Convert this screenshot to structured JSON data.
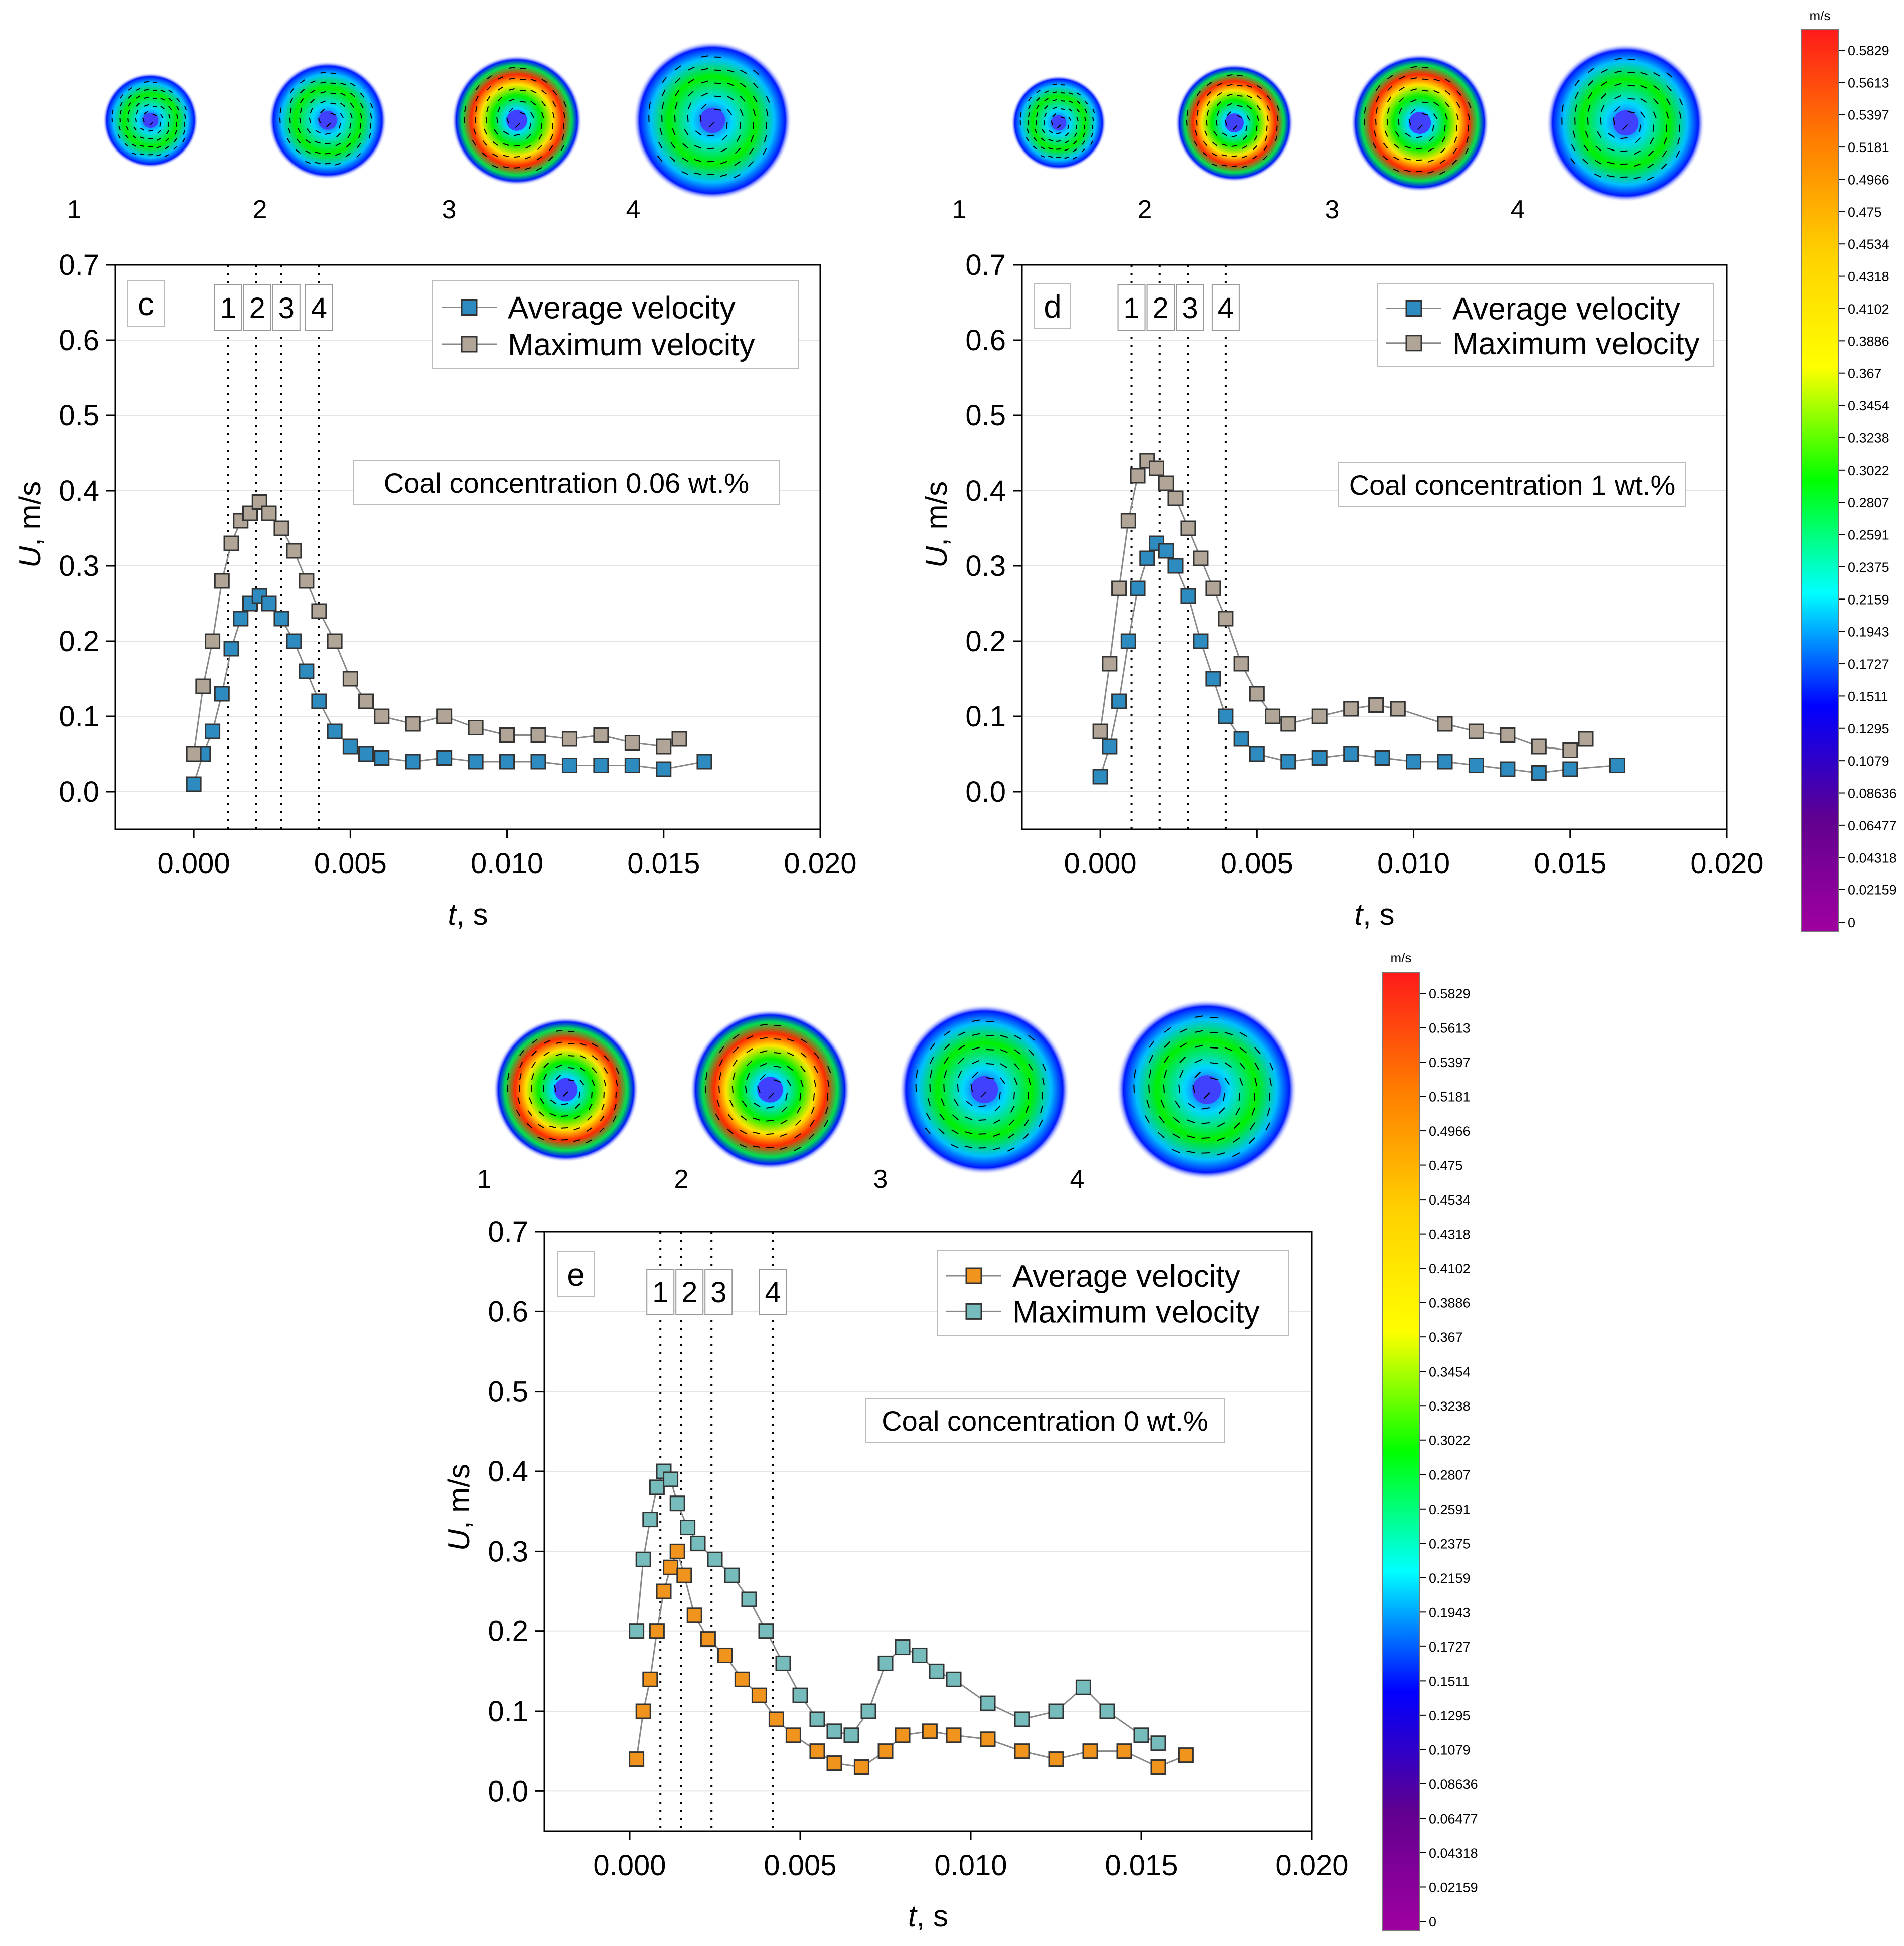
{
  "colorbar": {
    "unit": "m/s",
    "ticks": [
      "0.5829",
      "0.5613",
      "0.5397",
      "0.5181",
      "0.4966",
      "0.475",
      "0.4534",
      "0.4318",
      "0.4102",
      "0.3886",
      "0.367",
      "0.3454",
      "0.3238",
      "0.3022",
      "0.2807",
      "0.2591",
      "0.2375",
      "0.2159",
      "0.1943",
      "0.1727",
      "0.1511",
      "0.1295",
      "0.1079",
      "0.08636",
      "0.06477",
      "0.04318",
      "0.02159",
      "0"
    ],
    "stops": [
      "#ff1a1a",
      "#ff7f00",
      "#ffd200",
      "#ffff00",
      "#00ff00",
      "#00ffff",
      "#0000ff",
      "#600090",
      "#a000a0"
    ]
  },
  "snapshot_labels": [
    "1",
    "2",
    "3",
    "4"
  ],
  "chart_data": [
    {
      "type": "scatter",
      "panel_label": "c",
      "annotation": "Coal concentration 0.06 wt.%",
      "xlabel_italic": "t",
      "xlabel_rest": ", s",
      "ylabel_italic": "U",
      "ylabel_rest": ", m/s",
      "xlim": [
        -0.0025,
        0.02
      ],
      "ylim": [
        -0.05,
        0.7
      ],
      "xticks": [
        "0.000",
        "0.005",
        "0.010",
        "0.015",
        "0.020"
      ],
      "yticks": [
        "0.0",
        "0.1",
        "0.2",
        "0.3",
        "0.4",
        "0.5",
        "0.6",
        "0.7"
      ],
      "markers": [
        {
          "label": "1",
          "t": 0.0011
        },
        {
          "label": "2",
          "t": 0.002
        },
        {
          "label": "3",
          "t": 0.0028
        },
        {
          "label": "4",
          "t": 0.004
        }
      ],
      "series": [
        {
          "name": "Average velocity",
          "color": "#2e8bc0",
          "points": [
            [
              0,
              0.01
            ],
            [
              0.0003,
              0.05
            ],
            [
              0.0006,
              0.08
            ],
            [
              0.0009,
              0.13
            ],
            [
              0.0012,
              0.19
            ],
            [
              0.0015,
              0.23
            ],
            [
              0.0018,
              0.25
            ],
            [
              0.0021,
              0.26
            ],
            [
              0.0024,
              0.25
            ],
            [
              0.0028,
              0.23
            ],
            [
              0.0032,
              0.2
            ],
            [
              0.0036,
              0.16
            ],
            [
              0.004,
              0.12
            ],
            [
              0.0045,
              0.08
            ],
            [
              0.005,
              0.06
            ],
            [
              0.0055,
              0.05
            ],
            [
              0.006,
              0.045
            ],
            [
              0.007,
              0.04
            ],
            [
              0.008,
              0.045
            ],
            [
              0.009,
              0.04
            ],
            [
              0.01,
              0.04
            ],
            [
              0.011,
              0.04
            ],
            [
              0.012,
              0.035
            ],
            [
              0.013,
              0.035
            ],
            [
              0.014,
              0.035
            ],
            [
              0.015,
              0.03
            ],
            [
              0.0163,
              0.04
            ]
          ]
        },
        {
          "name": "Maximum velocity",
          "color": "#b1a598",
          "points": [
            [
              0,
              0.05
            ],
            [
              0.0003,
              0.14
            ],
            [
              0.0006,
              0.2
            ],
            [
              0.0009,
              0.28
            ],
            [
              0.0012,
              0.33
            ],
            [
              0.0015,
              0.36
            ],
            [
              0.0018,
              0.37
            ],
            [
              0.0021,
              0.385
            ],
            [
              0.0024,
              0.37
            ],
            [
              0.0028,
              0.35
            ],
            [
              0.0032,
              0.32
            ],
            [
              0.0036,
              0.28
            ],
            [
              0.004,
              0.24
            ],
            [
              0.0045,
              0.2
            ],
            [
              0.005,
              0.15
            ],
            [
              0.0055,
              0.12
            ],
            [
              0.006,
              0.1
            ],
            [
              0.007,
              0.09
            ],
            [
              0.008,
              0.1
            ],
            [
              0.009,
              0.085
            ],
            [
              0.01,
              0.075
            ],
            [
              0.011,
              0.075
            ],
            [
              0.012,
              0.07
            ],
            [
              0.013,
              0.075
            ],
            [
              0.014,
              0.065
            ],
            [
              0.015,
              0.06
            ],
            [
              0.0155,
              0.07
            ]
          ]
        }
      ]
    },
    {
      "type": "scatter",
      "panel_label": "d",
      "annotation": "Coal concentration 1 wt.%",
      "xlabel_italic": "t",
      "xlabel_rest": ", s",
      "ylabel_italic": "U",
      "ylabel_rest": ", m/s",
      "xlim": [
        -0.0025,
        0.02
      ],
      "ylim": [
        -0.05,
        0.7
      ],
      "xticks": [
        "0.000",
        "0.005",
        "0.010",
        "0.015",
        "0.020"
      ],
      "yticks": [
        "0.0",
        "0.1",
        "0.2",
        "0.3",
        "0.4",
        "0.5",
        "0.6",
        "0.7"
      ],
      "markers": [
        {
          "label": "1",
          "t": 0.001
        },
        {
          "label": "2",
          "t": 0.0019
        },
        {
          "label": "3",
          "t": 0.0028
        },
        {
          "label": "4",
          "t": 0.004
        }
      ],
      "series": [
        {
          "name": "Average velocity",
          "color": "#2e8bc0",
          "points": [
            [
              0,
              0.02
            ],
            [
              0.0003,
              0.06
            ],
            [
              0.0006,
              0.12
            ],
            [
              0.0009,
              0.2
            ],
            [
              0.0012,
              0.27
            ],
            [
              0.0015,
              0.31
            ],
            [
              0.0018,
              0.33
            ],
            [
              0.0021,
              0.32
            ],
            [
              0.0024,
              0.3
            ],
            [
              0.0028,
              0.26
            ],
            [
              0.0032,
              0.2
            ],
            [
              0.0036,
              0.15
            ],
            [
              0.004,
              0.1
            ],
            [
              0.0045,
              0.07
            ],
            [
              0.005,
              0.05
            ],
            [
              0.006,
              0.04
            ],
            [
              0.007,
              0.045
            ],
            [
              0.008,
              0.05
            ],
            [
              0.009,
              0.045
            ],
            [
              0.01,
              0.04
            ],
            [
              0.011,
              0.04
            ],
            [
              0.012,
              0.035
            ],
            [
              0.013,
              0.03
            ],
            [
              0.014,
              0.025
            ],
            [
              0.015,
              0.03
            ],
            [
              0.0165,
              0.035
            ]
          ]
        },
        {
          "name": "Maximum velocity",
          "color": "#b1a598",
          "points": [
            [
              0,
              0.08
            ],
            [
              0.0003,
              0.17
            ],
            [
              0.0006,
              0.27
            ],
            [
              0.0009,
              0.36
            ],
            [
              0.0012,
              0.42
            ],
            [
              0.0015,
              0.44
            ],
            [
              0.0018,
              0.43
            ],
            [
              0.0021,
              0.41
            ],
            [
              0.0024,
              0.39
            ],
            [
              0.0028,
              0.35
            ],
            [
              0.0032,
              0.31
            ],
            [
              0.0036,
              0.27
            ],
            [
              0.004,
              0.23
            ],
            [
              0.0045,
              0.17
            ],
            [
              0.005,
              0.13
            ],
            [
              0.0055,
              0.1
            ],
            [
              0.006,
              0.09
            ],
            [
              0.007,
              0.1
            ],
            [
              0.008,
              0.11
            ],
            [
              0.0088,
              0.115
            ],
            [
              0.0095,
              0.11
            ],
            [
              0.011,
              0.09
            ],
            [
              0.012,
              0.08
            ],
            [
              0.013,
              0.075
            ],
            [
              0.014,
              0.06
            ],
            [
              0.015,
              0.055
            ],
            [
              0.0155,
              0.07
            ]
          ]
        }
      ]
    },
    {
      "type": "scatter",
      "panel_label": "e",
      "annotation": "Coal concentration 0 wt.%",
      "xlabel_italic": "t",
      "xlabel_rest": ", s",
      "ylabel_italic": "U",
      "ylabel_rest": ", m/s",
      "xlim": [
        -0.0025,
        0.02
      ],
      "ylim": [
        -0.05,
        0.7
      ],
      "xticks": [
        "0.000",
        "0.005",
        "0.010",
        "0.015",
        "0.020"
      ],
      "yticks": [
        "0.0",
        "0.1",
        "0.2",
        "0.3",
        "0.4",
        "0.5",
        "0.6",
        "0.7"
      ],
      "markers": [
        {
          "label": "1",
          "t": 0.0009
        },
        {
          "label": "2",
          "t": 0.0015
        },
        {
          "label": "3",
          "t": 0.0024
        },
        {
          "label": "4",
          "t": 0.0042
        }
      ],
      "series": [
        {
          "name": "Average velocity",
          "color": "#f0941e",
          "points": [
            [
              0.0002,
              0.04
            ],
            [
              0.0004,
              0.1
            ],
            [
              0.0006,
              0.14
            ],
            [
              0.0008,
              0.2
            ],
            [
              0.001,
              0.25
            ],
            [
              0.0012,
              0.28
            ],
            [
              0.0014,
              0.3
            ],
            [
              0.0016,
              0.27
            ],
            [
              0.0019,
              0.22
            ],
            [
              0.0023,
              0.19
            ],
            [
              0.0028,
              0.17
            ],
            [
              0.0033,
              0.14
            ],
            [
              0.0038,
              0.12
            ],
            [
              0.0043,
              0.09
            ],
            [
              0.0048,
              0.07
            ],
            [
              0.0055,
              0.05
            ],
            [
              0.006,
              0.035
            ],
            [
              0.0068,
              0.03
            ],
            [
              0.0075,
              0.05
            ],
            [
              0.008,
              0.07
            ],
            [
              0.0088,
              0.075
            ],
            [
              0.0095,
              0.07
            ],
            [
              0.0105,
              0.065
            ],
            [
              0.0115,
              0.05
            ],
            [
              0.0125,
              0.04
            ],
            [
              0.0135,
              0.05
            ],
            [
              0.0145,
              0.05
            ],
            [
              0.0155,
              0.03
            ],
            [
              0.0163,
              0.045
            ]
          ]
        },
        {
          "name": "Maximum velocity",
          "color": "#76bcbc",
          "points": [
            [
              0.0002,
              0.2
            ],
            [
              0.0004,
              0.29
            ],
            [
              0.0006,
              0.34
            ],
            [
              0.0008,
              0.38
            ],
            [
              0.001,
              0.4
            ],
            [
              0.0012,
              0.39
            ],
            [
              0.0014,
              0.36
            ],
            [
              0.0017,
              0.33
            ],
            [
              0.002,
              0.31
            ],
            [
              0.0025,
              0.29
            ],
            [
              0.003,
              0.27
            ],
            [
              0.0035,
              0.24
            ],
            [
              0.004,
              0.2
            ],
            [
              0.0045,
              0.16
            ],
            [
              0.005,
              0.12
            ],
            [
              0.0055,
              0.09
            ],
            [
              0.006,
              0.075
            ],
            [
              0.0065,
              0.07
            ],
            [
              0.007,
              0.1
            ],
            [
              0.0075,
              0.16
            ],
            [
              0.008,
              0.18
            ],
            [
              0.0085,
              0.17
            ],
            [
              0.009,
              0.15
            ],
            [
              0.0095,
              0.14
            ],
            [
              0.0105,
              0.11
            ],
            [
              0.0115,
              0.09
            ],
            [
              0.0125,
              0.1
            ],
            [
              0.0133,
              0.13
            ],
            [
              0.014,
              0.1
            ],
            [
              0.015,
              0.07
            ],
            [
              0.0155,
              0.06
            ]
          ]
        }
      ]
    }
  ]
}
